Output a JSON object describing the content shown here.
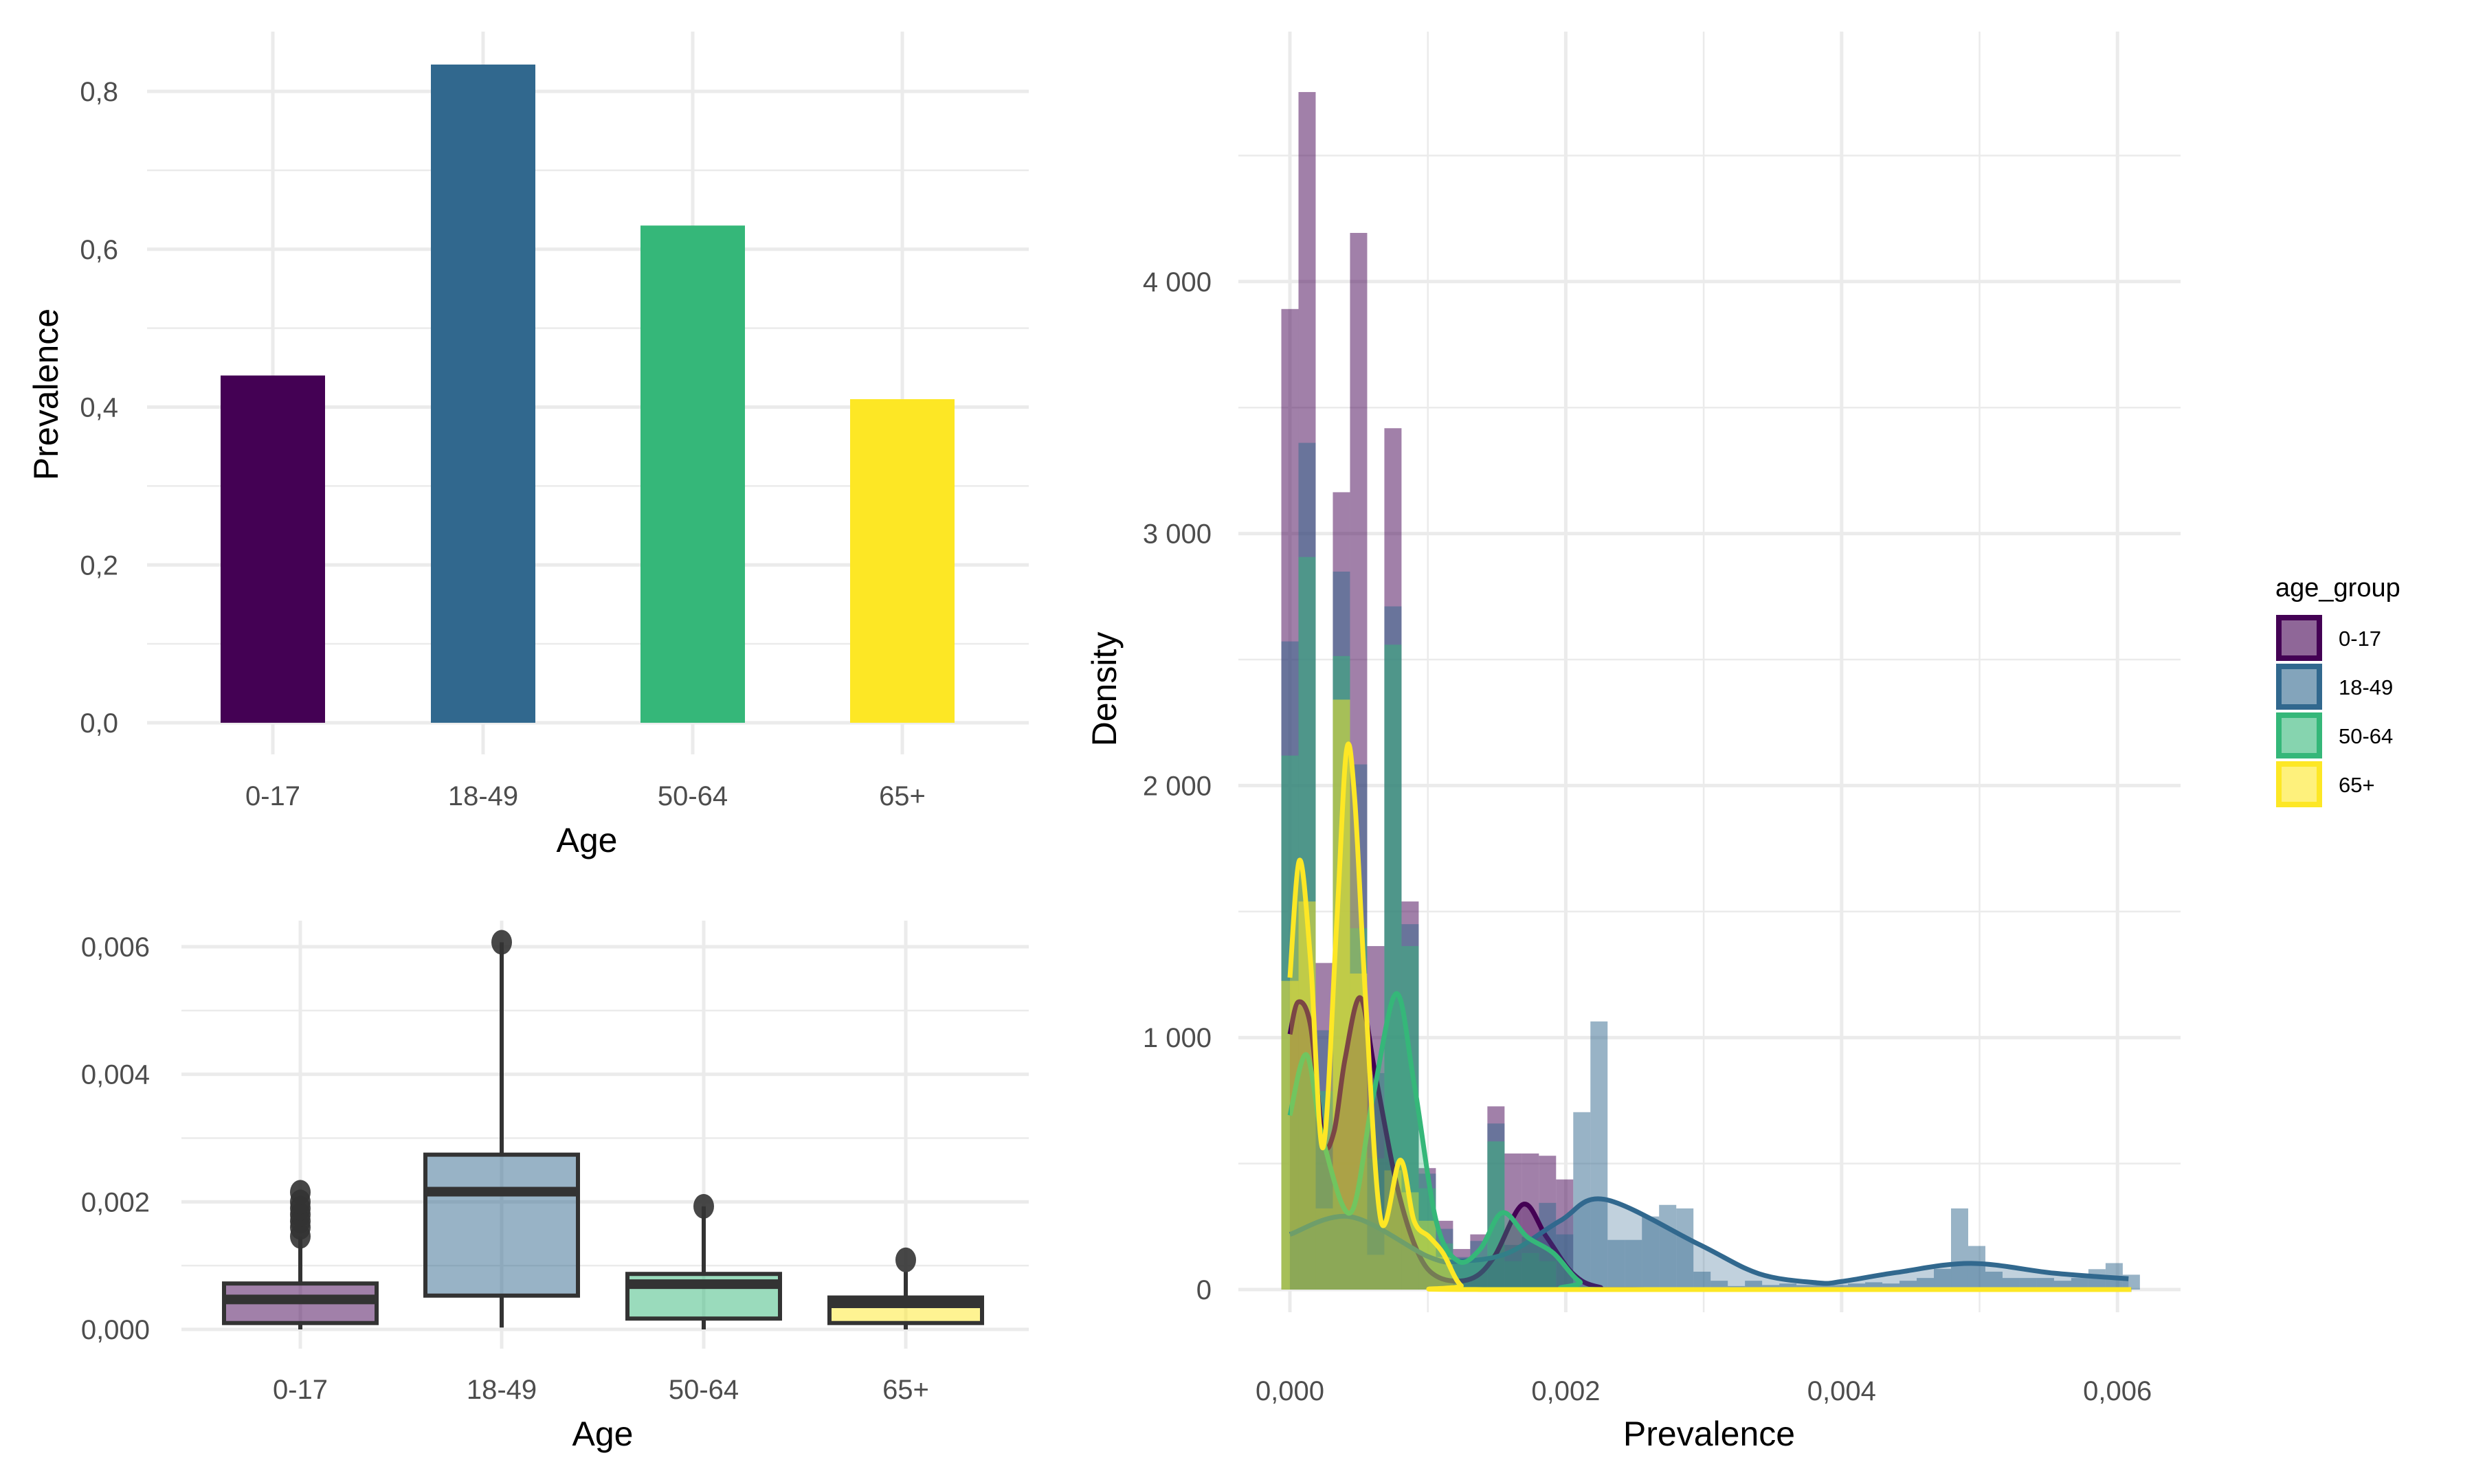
{
  "colors": {
    "0-17": "#440154",
    "18-49": "#31688E",
    "50-64": "#35B779",
    "65+": "#FDE725",
    "grid": "#EBEBEB",
    "box_line": "#333333"
  },
  "chart_data": [
    {
      "type": "bar",
      "title": "",
      "xlabel": "Age",
      "ylabel": "Prevalence",
      "categories": [
        "0-17",
        "18-49",
        "50-64",
        "65+"
      ],
      "values": [
        0.44,
        0.834,
        0.63,
        0.41
      ],
      "ylim": [
        0,
        0.8
      ],
      "yticks": [
        "0,0",
        "0,2",
        "0,4",
        "0,6",
        "0,8"
      ],
      "ytick_values": [
        0,
        0.2,
        0.4,
        0.6,
        0.8
      ],
      "grid": true
    },
    {
      "type": "box",
      "xlabel": "Age",
      "ylabel": "",
      "categories": [
        "0-17",
        "18-49",
        "50-64",
        "65+"
      ],
      "boxes": [
        {
          "min": 0.0,
          "q1": 0.0001,
          "median": 0.00047,
          "q3": 0.00072,
          "max": 0.00146,
          "outliers": [
            0.00146,
            0.0016,
            0.0017,
            0.0018,
            0.0019,
            0.002,
            0.00215
          ]
        },
        {
          "min": 3e-05,
          "q1": 0.00053,
          "median": 0.00216,
          "q3": 0.00274,
          "max": 0.00607,
          "outliers": [
            0.00607
          ]
        },
        {
          "min": 0.0,
          "q1": 0.00017,
          "median": 0.00071,
          "q3": 0.00087,
          "max": 0.00193,
          "outliers": [
            0.00193
          ]
        },
        {
          "min": 0.0,
          "q1": 0.0001,
          "median": 0.00041,
          "q3": 0.0005,
          "max": 0.0009,
          "outliers": [
            0.00109
          ]
        }
      ],
      "ylim": [
        0,
        0.006
      ],
      "yticks": [
        "0,000",
        "0,002",
        "0,004",
        "0,006"
      ],
      "ytick_values": [
        0,
        0.002,
        0.004,
        0.006
      ],
      "grid": true
    },
    {
      "type": "histogram+density",
      "xlabel": "Prevalence",
      "ylabel": "Density",
      "xlim": [
        0,
        0.006
      ],
      "ylim": [
        0,
        4750
      ],
      "xticks": [
        "0,000",
        "0,002",
        "0,004",
        "0,006"
      ],
      "xtick_values": [
        0,
        0.002,
        0.004,
        0.006
      ],
      "yticks": [
        "0",
        "1 000",
        "2 000",
        "3 000",
        "4 000"
      ],
      "ytick_values": [
        0,
        1000,
        2000,
        3000,
        4000
      ],
      "bin_width": 0.0001245,
      "legend": {
        "title": "age_group",
        "position": "right",
        "entries": [
          "0-17",
          "18-49",
          "50-64",
          "65+"
        ]
      },
      "series": [
        {
          "name": "0-17",
          "hist": [
            3891,
            4752,
            1296,
            3164,
            4193,
            1363,
            3418,
            1540,
            482,
            273,
            161,
            219,
            727,
            540,
            540,
            531,
            437
          ],
          "density": [
            [
              0,
              1013
            ],
            [
              6e-05,
              1141
            ],
            [
              0.00015,
              1045
            ],
            [
              0.00024,
              595
            ],
            [
              0.00032,
              627
            ],
            [
              0.0004,
              916
            ],
            [
              0.00051,
              1158
            ],
            [
              0.00062,
              852
            ],
            [
              0.00078,
              402
            ],
            [
              0.00093,
              145
            ],
            [
              0.00108,
              48
            ],
            [
              0.00131,
              42
            ],
            [
              0.00148,
              129
            ],
            [
              0.00169,
              338
            ],
            [
              0.00186,
              209
            ],
            [
              0.00205,
              64
            ],
            [
              0.00224,
              10
            ],
            [
              0.0026,
              0
            ],
            [
              0.0061,
              0
            ]
          ]
        },
        {
          "name": "18-49",
          "hist": [
            2572,
            3360,
            1029,
            2849,
            2084,
            859,
            2711,
            1450,
            460,
            241,
            129,
            193,
            659,
            177,
            209,
            344,
            219,
            704,
            1064,
            197,
            197,
            290,
            336,
            322,
            71,
            35,
            14,
            35,
            18,
            24,
            18,
            18,
            18,
            24,
            29,
            24,
            35,
            46,
            82,
            322,
            173,
            71,
            46,
            46,
            46,
            35,
            46,
            81,
            105,
            59
          ],
          "density": [
            [
              0,
              219
            ],
            [
              0.00044,
              289
            ],
            [
              0.00101,
              129
            ],
            [
              0.00124,
              113
            ],
            [
              0.00158,
              145
            ],
            [
              0.00196,
              273
            ],
            [
              0.00228,
              358
            ],
            [
              0.00296,
              181
            ],
            [
              0.0034,
              63
            ],
            [
              0.00382,
              27
            ],
            [
              0.004,
              32
            ],
            [
              0.0044,
              68
            ],
            [
              0.00494,
              104
            ],
            [
              0.00554,
              65
            ],
            [
              0.00608,
              43
            ]
          ]
        },
        {
          "name": "50-64",
          "hist": [
            2119,
            2907,
            788,
            2514,
            1434,
            521,
            2559,
            1363,
            402,
            183,
            113,
            129,
            588,
            113,
            145,
            113
          ],
          "density": [
            [
              0,
              691
            ],
            [
              0.00012,
              932
            ],
            [
              0.00024,
              595
            ],
            [
              0.00044,
              305
            ],
            [
              0.0006,
              756
            ],
            [
              0.00077,
              1174
            ],
            [
              0.0009,
              820
            ],
            [
              0.00106,
              273
            ],
            [
              0.00122,
              113
            ],
            [
              0.00138,
              161
            ],
            [
              0.00154,
              305
            ],
            [
              0.00172,
              209
            ],
            [
              0.00191,
              145
            ],
            [
              0.0021,
              32
            ],
            [
              0.0023,
              0
            ],
            [
              0.0061,
              0
            ]
          ]
        },
        {
          "name": "65+",
          "hist": [
            1225,
            1540,
            322,
            2341,
            1254,
            138,
            473,
            386,
            273,
            129
          ],
          "density": [
            [
              0,
              1238
            ],
            [
              7e-05,
              1704
            ],
            [
              0.00015,
              1302
            ],
            [
              0.00024,
              563
            ],
            [
              0.00034,
              1463
            ],
            [
              0.00041,
              2138
            ],
            [
              0.00047,
              1945
            ],
            [
              0.00055,
              1141
            ],
            [
              0.00066,
              273
            ],
            [
              0.0008,
              514
            ],
            [
              0.0009,
              273
            ],
            [
              0.00101,
              209
            ],
            [
              0.00111,
              145
            ],
            [
              0.00124,
              16
            ],
            [
              0.0014,
              0
            ],
            [
              0.0061,
              0
            ]
          ]
        }
      ]
    }
  ]
}
